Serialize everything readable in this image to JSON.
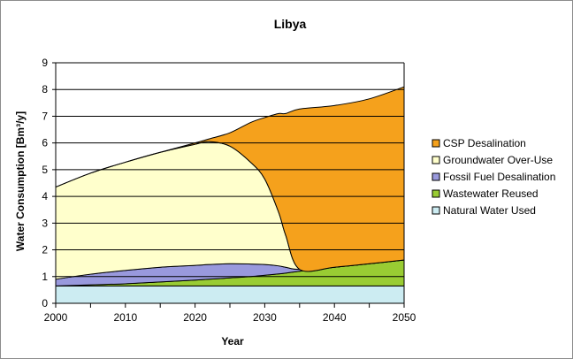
{
  "chart_data": {
    "type": "area",
    "title": "Libya",
    "xlabel": "Year",
    "ylabel": "Water Consumption [Bm³/y]",
    "xlim": [
      2000,
      2050
    ],
    "ylim": [
      0,
      9
    ],
    "x_ticks": [
      "2000",
      "2010",
      "2020",
      "2030",
      "2040",
      "2050"
    ],
    "y_ticks": [
      "0",
      "1",
      "2",
      "3",
      "4",
      "5",
      "6",
      "7",
      "8",
      "9"
    ],
    "grid": "horizontal",
    "legend_position": "right",
    "stacked": true,
    "x": [
      2000,
      2005,
      2010,
      2015,
      2020,
      2022,
      2025,
      2028,
      2030,
      2032,
      2033,
      2035,
      2040,
      2045,
      2050
    ],
    "series": [
      {
        "name": "Natural Water Used",
        "color": "#ccecf2",
        "values": [
          0.65,
          0.65,
          0.65,
          0.65,
          0.65,
          0.65,
          0.65,
          0.65,
          0.65,
          0.65,
          0.65,
          0.65,
          0.65,
          0.65,
          0.65
        ]
      },
      {
        "name": "Wastewater Reused",
        "color": "#99cc33",
        "values": [
          0.0,
          0.04,
          0.08,
          0.15,
          0.22,
          0.25,
          0.3,
          0.35,
          0.4,
          0.45,
          0.48,
          0.55,
          0.7,
          0.83,
          0.97
        ]
      },
      {
        "name": "Fossil Fuel Desalination",
        "color": "#9999dd",
        "values": [
          0.25,
          0.4,
          0.5,
          0.55,
          0.55,
          0.55,
          0.53,
          0.47,
          0.4,
          0.3,
          0.22,
          0.07,
          0.0,
          0.0,
          0.0
        ]
      },
      {
        "name": "Groundwater Over-Use",
        "color": "#ffffcc",
        "values": [
          3.45,
          3.78,
          4.05,
          4.3,
          4.53,
          4.6,
          4.4,
          3.8,
          3.2,
          2.0,
          1.2,
          0.0,
          0.0,
          0.0,
          0.0
        ]
      },
      {
        "name": "CSP Desalination",
        "color": "#f5a11c",
        "values": [
          0.0,
          0.0,
          0.0,
          0.0,
          0.05,
          0.1,
          0.5,
          1.5,
          2.3,
          3.7,
          4.55,
          6.0,
          6.05,
          6.17,
          6.48
        ]
      }
    ]
  }
}
